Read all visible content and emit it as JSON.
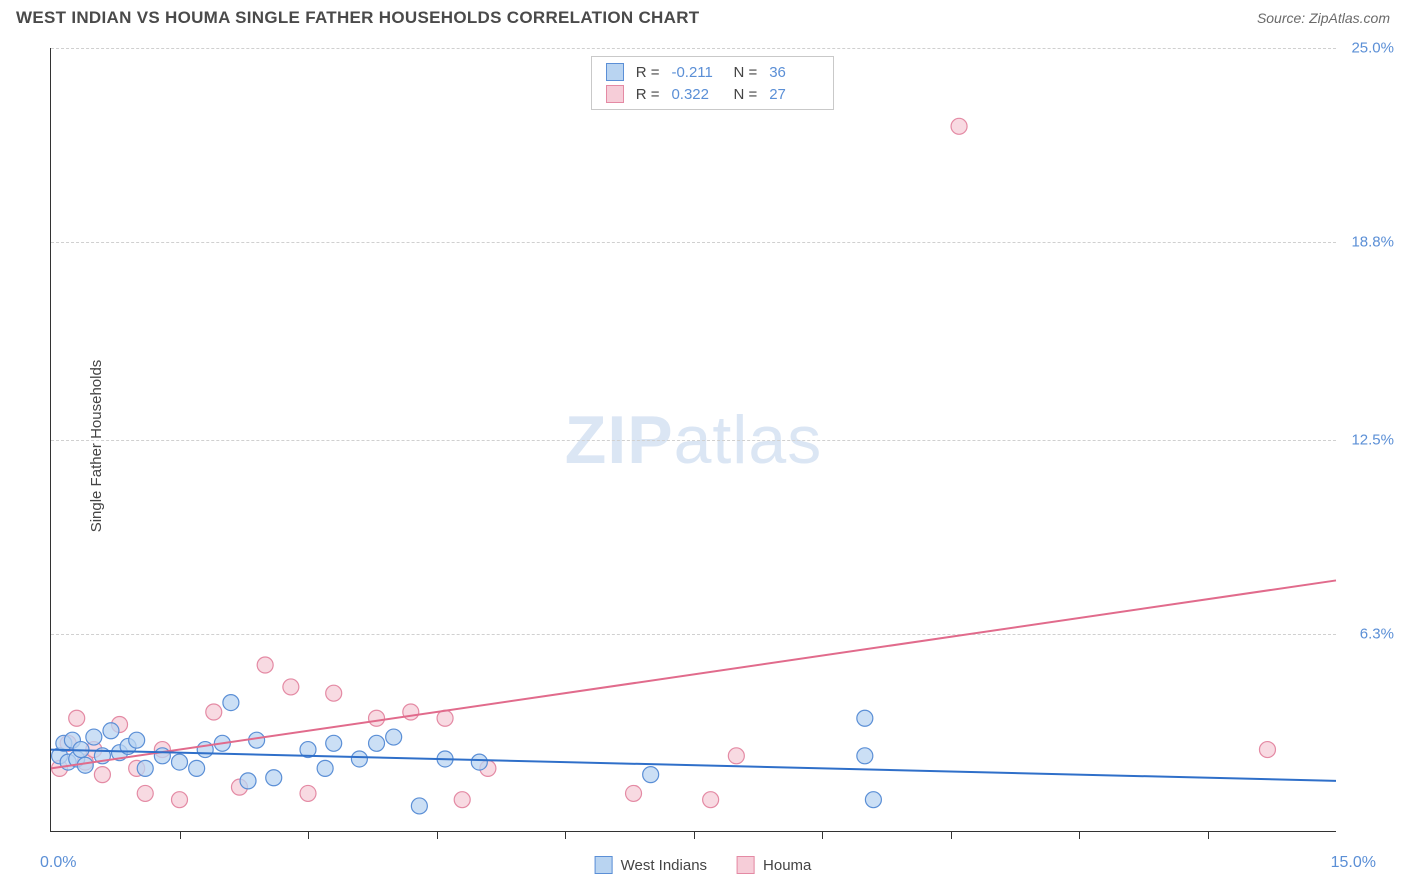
{
  "title": "WEST INDIAN VS HOUMA SINGLE FATHER HOUSEHOLDS CORRELATION CHART",
  "source_label": "Source: ZipAtlas.com",
  "ylabel": "Single Father Households",
  "watermark_zip": "ZIP",
  "watermark_atlas": "atlas",
  "chart": {
    "type": "scatter",
    "xlim": [
      0,
      15
    ],
    "ylim": [
      0,
      25
    ],
    "x_axis_min_label": "0.0%",
    "x_axis_max_label": "15.0%",
    "xtick_positions": [
      1.5,
      3.0,
      4.5,
      6.0,
      7.5,
      9.0,
      10.5,
      12.0,
      13.5
    ],
    "ytick_labels": [
      "6.3%",
      "12.5%",
      "18.8%",
      "25.0%"
    ],
    "ytick_values": [
      6.3,
      12.5,
      18.8,
      25.0
    ],
    "background_color": "#ffffff",
    "grid_color": "#d0d0d0",
    "axis_color": "#333333",
    "tick_label_color": "#5b8fd6",
    "marker_radius": 8,
    "marker_stroke_width": 1.2,
    "line_width": 2
  },
  "series": {
    "west_indians": {
      "label": "West Indians",
      "color_fill": "#b9d4f1",
      "color_stroke": "#5b8fd6",
      "line_color": "#2f6fc9",
      "r_value": "-0.211",
      "n_value": "36",
      "trend": {
        "x1": 0,
        "y1": 2.6,
        "x2": 15,
        "y2": 1.6
      },
      "points": [
        [
          0.1,
          2.4
        ],
        [
          0.15,
          2.8
        ],
        [
          0.2,
          2.2
        ],
        [
          0.25,
          2.9
        ],
        [
          0.3,
          2.3
        ],
        [
          0.35,
          2.6
        ],
        [
          0.4,
          2.1
        ],
        [
          0.5,
          3.0
        ],
        [
          0.6,
          2.4
        ],
        [
          0.7,
          3.2
        ],
        [
          0.8,
          2.5
        ],
        [
          0.9,
          2.7
        ],
        [
          1.0,
          2.9
        ],
        [
          1.1,
          2.0
        ],
        [
          1.3,
          2.4
        ],
        [
          1.5,
          2.2
        ],
        [
          1.7,
          2.0
        ],
        [
          1.8,
          2.6
        ],
        [
          2.0,
          2.8
        ],
        [
          2.1,
          4.1
        ],
        [
          2.3,
          1.6
        ],
        [
          2.4,
          2.9
        ],
        [
          2.6,
          1.7
        ],
        [
          3.0,
          2.6
        ],
        [
          3.2,
          2.0
        ],
        [
          3.3,
          2.8
        ],
        [
          3.6,
          2.3
        ],
        [
          3.8,
          2.8
        ],
        [
          4.0,
          3.0
        ],
        [
          4.3,
          0.8
        ],
        [
          4.6,
          2.3
        ],
        [
          5.0,
          2.2
        ],
        [
          7.0,
          1.8
        ],
        [
          9.5,
          3.6
        ],
        [
          9.6,
          1.0
        ],
        [
          9.5,
          2.4
        ]
      ]
    },
    "houma": {
      "label": "Houma",
      "color_fill": "#f6cdd8",
      "color_stroke": "#e48aa4",
      "line_color": "#e16b8c",
      "r_value": "0.322",
      "n_value": "27",
      "trend": {
        "x1": 0,
        "y1": 2.0,
        "x2": 15,
        "y2": 8.0
      },
      "points": [
        [
          0.1,
          2.0
        ],
        [
          0.2,
          2.8
        ],
        [
          0.3,
          3.6
        ],
        [
          0.4,
          2.2
        ],
        [
          0.5,
          2.6
        ],
        [
          0.6,
          1.8
        ],
        [
          0.8,
          3.4
        ],
        [
          1.0,
          2.0
        ],
        [
          1.1,
          1.2
        ],
        [
          1.3,
          2.6
        ],
        [
          1.5,
          1.0
        ],
        [
          1.9,
          3.8
        ],
        [
          2.2,
          1.4
        ],
        [
          2.5,
          5.3
        ],
        [
          2.8,
          4.6
        ],
        [
          3.0,
          1.2
        ],
        [
          3.3,
          4.4
        ],
        [
          3.8,
          3.6
        ],
        [
          4.2,
          3.8
        ],
        [
          4.6,
          3.6
        ],
        [
          5.1,
          2.0
        ],
        [
          6.8,
          1.2
        ],
        [
          7.7,
          1.0
        ],
        [
          8.0,
          2.4
        ],
        [
          10.6,
          22.5
        ],
        [
          14.2,
          2.6
        ],
        [
          4.8,
          1.0
        ]
      ]
    }
  },
  "stats_legend": {
    "r_label": "R =",
    "n_label": "N ="
  }
}
